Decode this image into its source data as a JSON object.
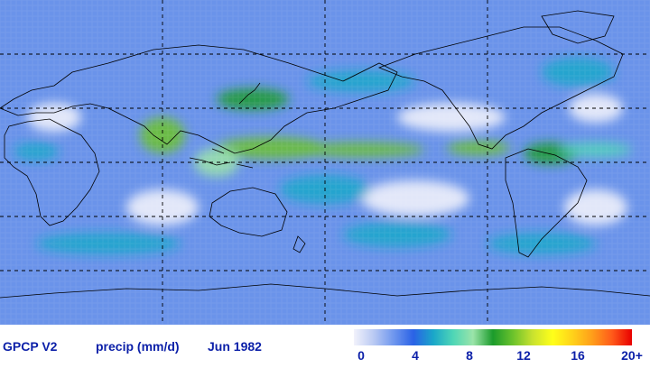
{
  "footer": {
    "dataset": "GPCP V2",
    "variable": "precip (mm/d)",
    "period": "Jun 1982"
  },
  "colorbar": {
    "ticks": [
      "0",
      "4",
      "8",
      "12",
      "16",
      "20+"
    ],
    "stops": [
      "#f2f2fb",
      "#b9c9f3",
      "#6f97ee",
      "#2a62e6",
      "#1aa7c9",
      "#4fd6b6",
      "#9be4a9",
      "#1b9b2b",
      "#6bc22c",
      "#c9e22f",
      "#ffff1a",
      "#ffd21a",
      "#ff9e1a",
      "#ff5a1a",
      "#e80000"
    ]
  },
  "map": {
    "gridlines_lon_deg": [
      90,
      180,
      270
    ],
    "gridlines_lat_deg": [
      60,
      30,
      0,
      -30,
      -60
    ],
    "rain_bands": [
      {
        "lon": 150,
        "lat": 8,
        "lon_w": 60,
        "lat_w": 6,
        "level": 12
      },
      {
        "lon": 200,
        "lat": 7,
        "lon_w": 70,
        "lat_w": 4,
        "level": 11
      },
      {
        "lon": 265,
        "lat": 8,
        "lon_w": 35,
        "lat_w": 4,
        "level": 12
      },
      {
        "lon": 305,
        "lat": 5,
        "lon_w": 30,
        "lat_w": 6,
        "level": 10
      },
      {
        "lon": 90,
        "lat": 15,
        "lon_w": 25,
        "lat_w": 10,
        "level": 11
      },
      {
        "lon": 140,
        "lat": 35,
        "lon_w": 40,
        "lat_w": 6,
        "level": 10
      },
      {
        "lon": 120,
        "lat": 0,
        "lon_w": 25,
        "lat_w": 8,
        "level": 9
      },
      {
        "lon": 20,
        "lat": 6,
        "lon_w": 25,
        "lat_w": 5,
        "level": 6
      },
      {
        "lon": 330,
        "lat": 7,
        "lon_w": 40,
        "lat_w": 4,
        "level": 7
      },
      {
        "lon": 220,
        "lat": -40,
        "lon_w": 60,
        "lat_w": 7,
        "level": 6
      },
      {
        "lon": 60,
        "lat": -45,
        "lon_w": 80,
        "lat_w": 6,
        "level": 5
      },
      {
        "lon": 300,
        "lat": -45,
        "lon_w": 60,
        "lat_w": 6,
        "level": 6
      },
      {
        "lon": 200,
        "lat": 45,
        "lon_w": 60,
        "lat_w": 6,
        "level": 5
      },
      {
        "lon": 320,
        "lat": 50,
        "lon_w": 40,
        "lat_w": 8,
        "level": 5
      },
      {
        "lon": 180,
        "lat": -15,
        "lon_w": 50,
        "lat_w": 8,
        "level": 5
      }
    ]
  }
}
